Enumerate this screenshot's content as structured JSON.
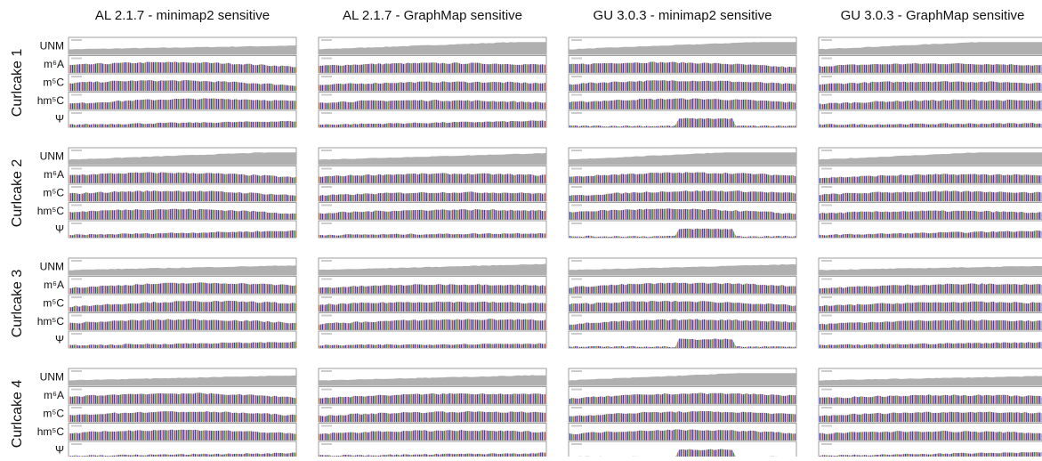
{
  "header": {
    "columns": [
      "AL 2.1.7 - minimap2 sensitive",
      "AL 2.1.7 - GraphMap sensitive",
      "GU 3.0.3 - minimap2 sensitive",
      "GU 3.0.3 - GraphMap sensitive"
    ]
  },
  "rows": [
    "Curlcake 1",
    "Curlcake 2",
    "Curlcake 3",
    "Curlcake 4"
  ],
  "tracks": [
    "UNM",
    "m⁶A",
    "m⁵C",
    "hm⁵C",
    "Ψ"
  ]
}
